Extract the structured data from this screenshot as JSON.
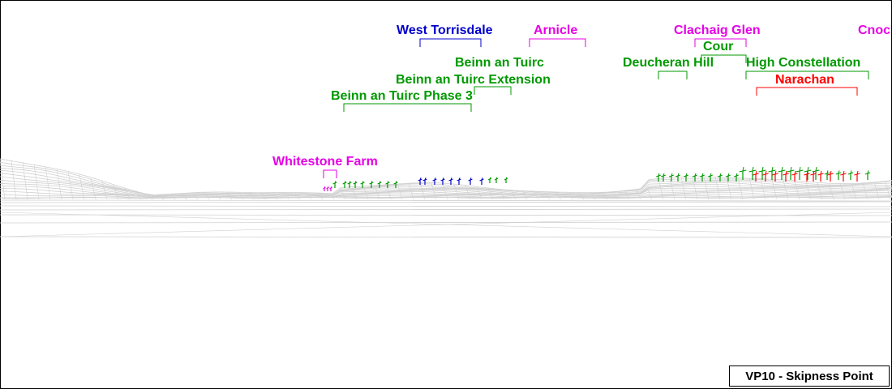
{
  "viewpoint": {
    "label": "VP10 - Skipness Point"
  },
  "colors": {
    "operational": "#009900",
    "consented": "#0000cc",
    "application": "#e600e6",
    "proposed": "#ff0000",
    "wireframe": "#d0d0d0",
    "frame": "#000000"
  },
  "windfarms": [
    {
      "id": "west-torrisdale",
      "name": "West Torrisdale",
      "status": "consented"
    },
    {
      "id": "arnicle",
      "name": "Arnicle",
      "status": "application"
    },
    {
      "id": "clachaig-glen",
      "name": "Clachaig Glen",
      "status": "application"
    },
    {
      "id": "cnoc",
      "name": "Cnoc",
      "status": "application"
    },
    {
      "id": "cour",
      "name": "Cour",
      "status": "operational"
    },
    {
      "id": "beinn-an-tuirc",
      "name": "Beinn an Tuirc",
      "status": "operational"
    },
    {
      "id": "deucheran-hill",
      "name": "Deucheran Hill",
      "status": "operational"
    },
    {
      "id": "high-constellation",
      "name": "High Constellation",
      "status": "operational"
    },
    {
      "id": "beinn-an-tuirc-extension",
      "name": "Beinn an Tuirc Extension",
      "status": "operational"
    },
    {
      "id": "narachan",
      "name": "Narachan",
      "status": "proposed"
    },
    {
      "id": "beinn-an-tuirc-phase-3",
      "name": "Beinn an Tuirc Phase 3",
      "status": "operational"
    },
    {
      "id": "whitestone-farm",
      "name": "Whitestone Farm",
      "status": "application"
    }
  ]
}
